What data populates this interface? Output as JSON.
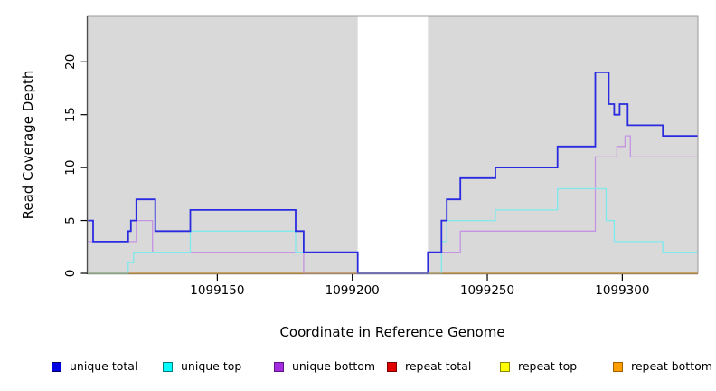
{
  "chart_data": {
    "type": "line",
    "subtype": "step-coverage",
    "xlabel": "Coordinate in Reference Genome",
    "ylabel": "Read Coverage Depth",
    "xlim": [
      1099102,
      1099328
    ],
    "ylim": [
      0,
      24.3
    ],
    "x_ticks": [
      1099150,
      1099200,
      1099250,
      1099300
    ],
    "y_ticks": [
      0,
      5,
      10,
      15,
      20
    ],
    "grid": "off",
    "plot_background": "#d9d9d9",
    "gap_region": {
      "start": 1099202,
      "end": 1099228,
      "fill": "#ffffff"
    },
    "border_color": "#999999",
    "axis_color": "#000000",
    "legend_position": "bottom",
    "series": [
      {
        "name": "unique total",
        "line_color": "#2a2ae0",
        "legend_fill": "#0000e0",
        "legend_border": "#000066",
        "line_width": 1.8,
        "end": 1099328,
        "points": [
          [
            1099102,
            5
          ],
          [
            1099104,
            3
          ],
          [
            1099117,
            4
          ],
          [
            1099118,
            5
          ],
          [
            1099120,
            7
          ],
          [
            1099127,
            4
          ],
          [
            1099140,
            6
          ],
          [
            1099179,
            4
          ],
          [
            1099182,
            2
          ],
          [
            1099202,
            0
          ],
          [
            1099228,
            2
          ],
          [
            1099233,
            5
          ],
          [
            1099235,
            7
          ],
          [
            1099240,
            9
          ],
          [
            1099253,
            10
          ],
          [
            1099276,
            12
          ],
          [
            1099290,
            19
          ],
          [
            1099295,
            16
          ],
          [
            1099297,
            15
          ],
          [
            1099299,
            16
          ],
          [
            1099302,
            14
          ],
          [
            1099315,
            13
          ]
        ]
      },
      {
        "name": "unique top",
        "line_color": "#7fe9ec",
        "legend_fill": "#00ffff",
        "legend_border": "#007d7d",
        "line_width": 1.3,
        "end": 1099328,
        "points": [
          [
            1099102,
            0
          ],
          [
            1099117,
            1
          ],
          [
            1099119,
            2
          ],
          [
            1099140,
            4
          ],
          [
            1099179,
            2
          ],
          [
            1099202,
            0
          ],
          [
            1099233,
            3
          ],
          [
            1099235,
            5
          ],
          [
            1099253,
            6
          ],
          [
            1099276,
            8
          ],
          [
            1099294,
            5
          ],
          [
            1099297,
            3
          ],
          [
            1099315,
            2
          ]
        ]
      },
      {
        "name": "unique bottom",
        "line_color": "#c493e2",
        "legend_fill": "#a62ce2",
        "legend_border": "#5c1580",
        "line_width": 1.3,
        "end": 1099328,
        "points": [
          [
            1099102,
            3
          ],
          [
            1099120,
            5
          ],
          [
            1099126,
            2
          ],
          [
            1099182,
            0
          ],
          [
            1099228,
            2
          ],
          [
            1099240,
            4
          ],
          [
            1099290,
            11
          ],
          [
            1099298,
            12
          ],
          [
            1099301,
            13
          ],
          [
            1099303,
            11
          ]
        ]
      },
      {
        "name": "repeat total",
        "line_color": "#e00000",
        "legend_fill": "#e00000",
        "legend_border": "#7a0000",
        "line_width": 1.3,
        "end": 1099328,
        "points": [
          [
            1099102,
            0
          ]
        ]
      },
      {
        "name": "repeat top",
        "line_color": "#ffff00",
        "legend_fill": "#ffff00",
        "legend_border": "#8c8c00",
        "line_width": 1.3,
        "end": 1099328,
        "points": [
          [
            1099102,
            0
          ]
        ]
      },
      {
        "name": "repeat bottom",
        "line_color": "#ff9e00",
        "legend_fill": "#ff9e00",
        "legend_border": "#a36000",
        "line_width": 1.4,
        "end": 1099328,
        "points": [
          [
            1099117,
            0
          ]
        ]
      }
    ],
    "baseline_blend_artifact": {
      "comment_color": "#8fdc9a",
      "end": 1099117,
      "points": [
        [
          1099102,
          0
        ]
      ]
    }
  }
}
